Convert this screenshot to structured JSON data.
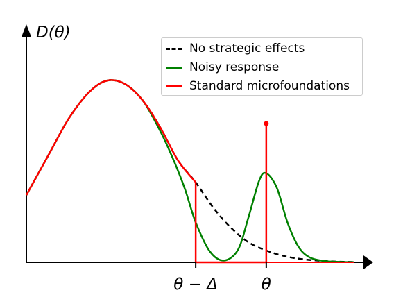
{
  "chart_data": {
    "type": "line",
    "ylabel": "D(θ)",
    "xticks": [
      {
        "label": "θ − Δ",
        "value": 0.0
      },
      {
        "label": "θ",
        "value": 1.0
      }
    ],
    "x_range": [
      -2.4,
      2.25
    ],
    "y_range": [
      0,
      1.0
    ],
    "grid": false,
    "legend_position": "top-right",
    "series": [
      {
        "name": "No strategic effects",
        "color": "#000000",
        "style": "dashed",
        "x": [
          -2.4,
          -2.1,
          -1.8,
          -1.5,
          -1.25,
          -1.0,
          -0.75,
          -0.5,
          -0.25,
          0.0,
          0.25,
          0.5,
          0.75,
          1.0,
          1.25,
          1.5,
          1.75,
          2.0,
          2.25
        ],
        "y": [
          0.37,
          0.58,
          0.79,
          0.94,
          1.0,
          0.98,
          0.89,
          0.74,
          0.56,
          0.44,
          0.3,
          0.19,
          0.11,
          0.065,
          0.035,
          0.018,
          0.009,
          0.004,
          0.002
        ]
      },
      {
        "name": "Noisy response",
        "color": "#008000",
        "style": "solid",
        "x": [
          -2.4,
          -2.1,
          -1.8,
          -1.5,
          -1.25,
          -1.0,
          -0.75,
          -0.5,
          -0.3,
          -0.15,
          0.0,
          0.2,
          0.4,
          0.6,
          0.75,
          0.9,
          1.0,
          1.15,
          1.3,
          1.45,
          1.6,
          1.8,
          2.0,
          2.25
        ],
        "y": [
          0.37,
          0.58,
          0.79,
          0.94,
          1.0,
          0.98,
          0.89,
          0.72,
          0.55,
          0.4,
          0.22,
          0.06,
          0.01,
          0.07,
          0.25,
          0.45,
          0.49,
          0.41,
          0.22,
          0.09,
          0.03,
          0.008,
          0.003,
          0.001
        ]
      },
      {
        "name": "Standard microfoundations",
        "color": "#ff0000",
        "style": "solid",
        "x": [
          -2.4,
          -2.1,
          -1.8,
          -1.5,
          -1.25,
          -1.0,
          -0.75,
          -0.5,
          -0.25,
          0.0
        ],
        "y": [
          0.37,
          0.58,
          0.79,
          0.94,
          1.0,
          0.98,
          0.89,
          0.74,
          0.56,
          0.44
        ]
      }
    ]
  }
}
